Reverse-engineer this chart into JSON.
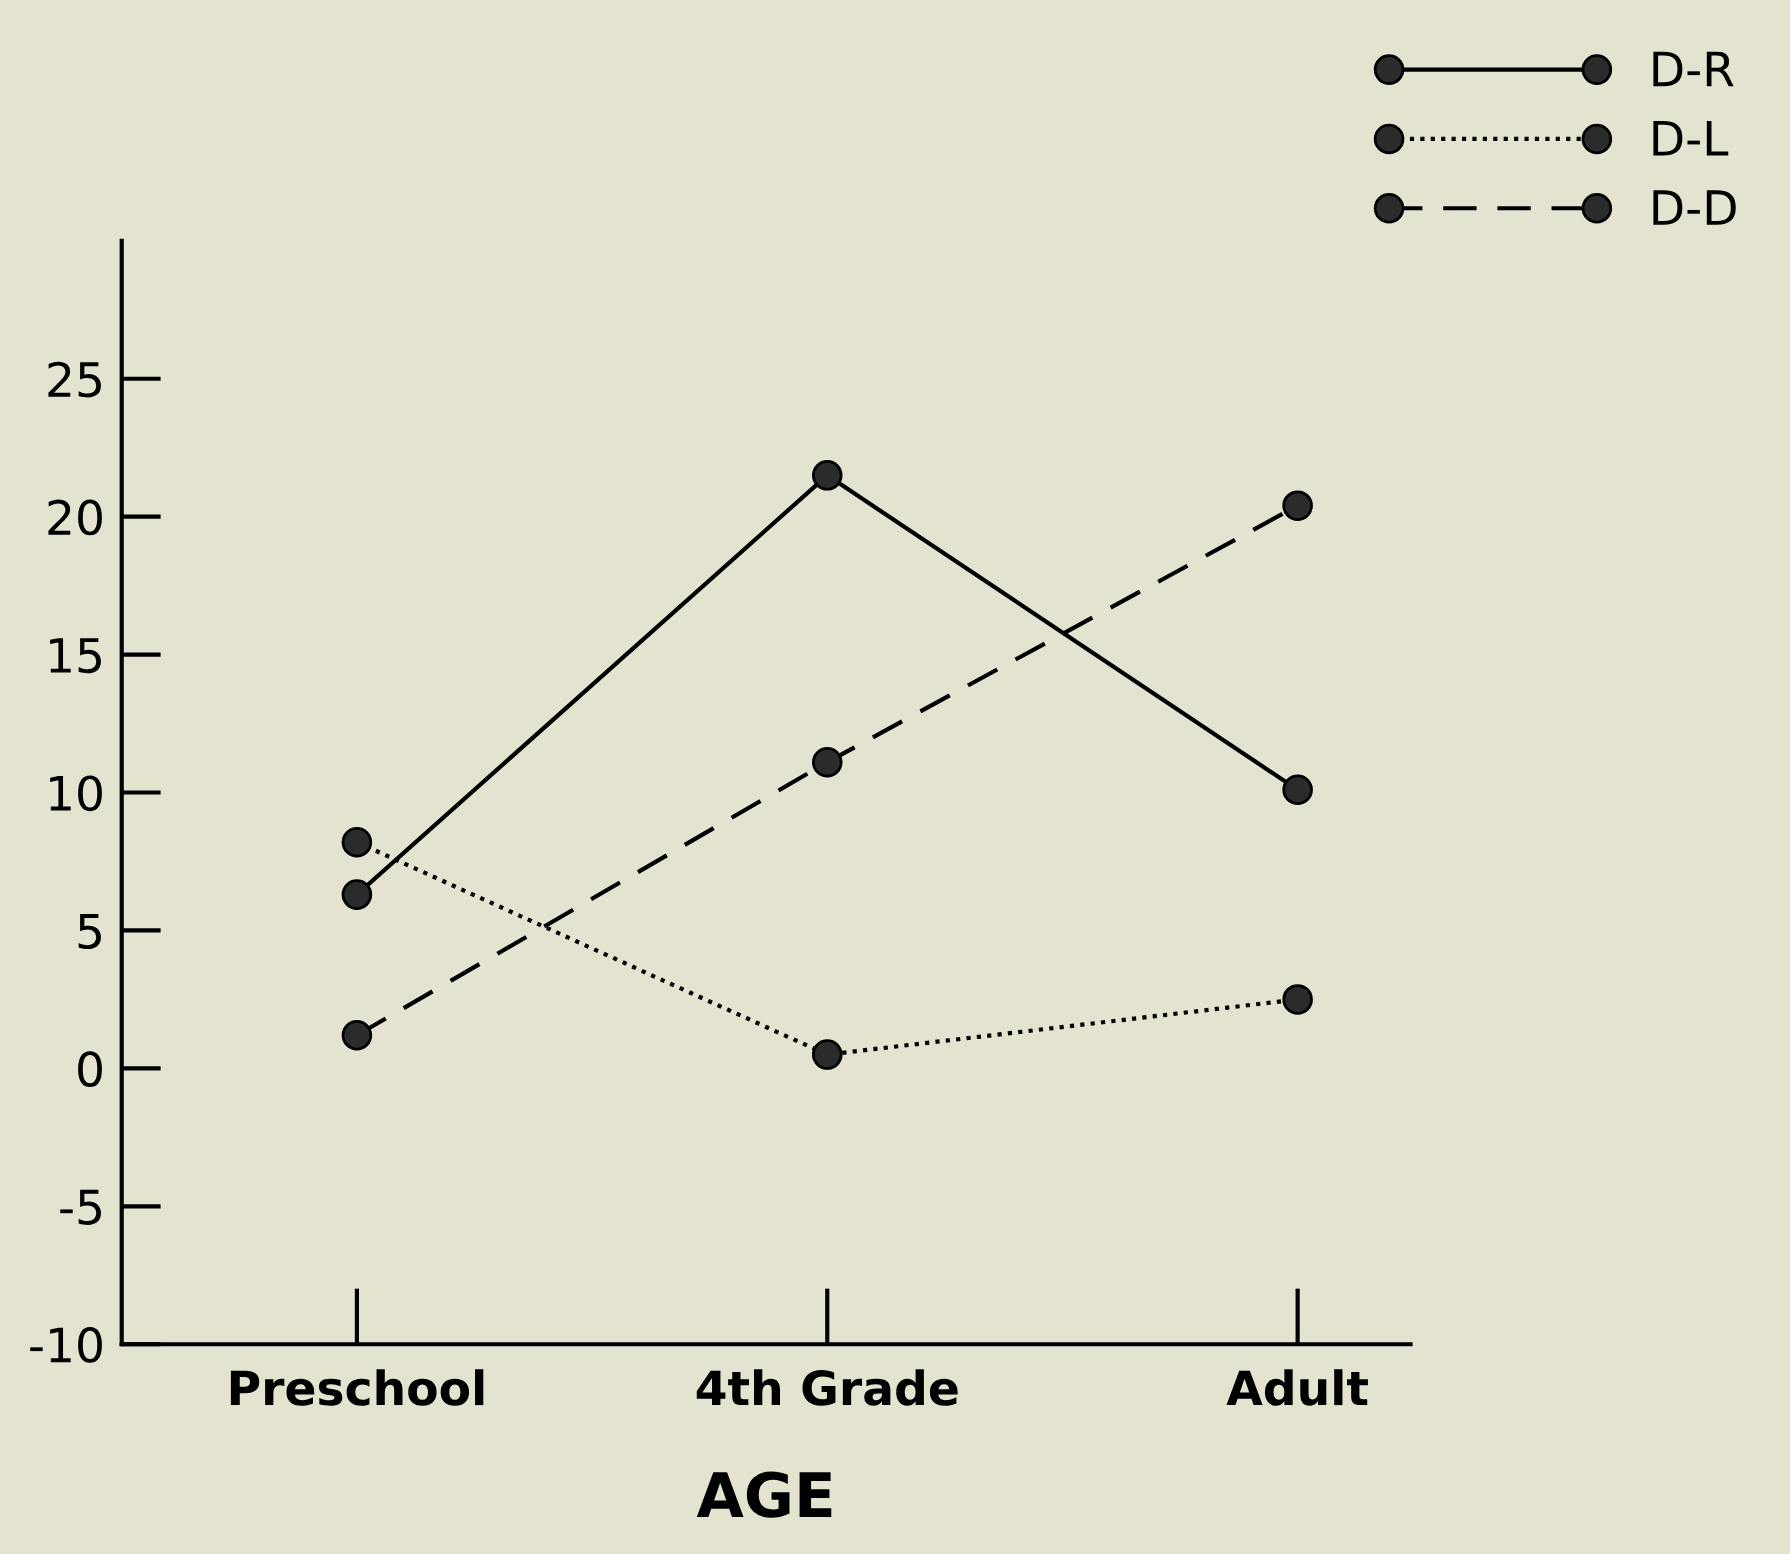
{
  "chart_data": {
    "type": "line",
    "xlabel": "AGE",
    "categories": [
      "Preschool",
      "4th Grade",
      "Adult"
    ],
    "series": [
      {
        "name": "D-R",
        "color": "#2b2b2b",
        "line_style": "solid",
        "values": [
          6.3,
          21.5,
          10.1
        ]
      },
      {
        "name": "D-L",
        "color": "#2b2b2b",
        "line_style": "dotted",
        "values": [
          8.2,
          0.5,
          2.5
        ]
      },
      {
        "name": "D-D",
        "color": "#2b2b2b",
        "line_style": "dashed",
        "values": [
          1.2,
          11.1,
          20.4
        ]
      }
    ],
    "ylim": [
      -10,
      30
    ],
    "yticks": [
      -10,
      -5,
      0,
      5,
      10,
      15,
      20,
      25
    ],
    "marker": "circle",
    "grid": false,
    "legend": "top right"
  }
}
